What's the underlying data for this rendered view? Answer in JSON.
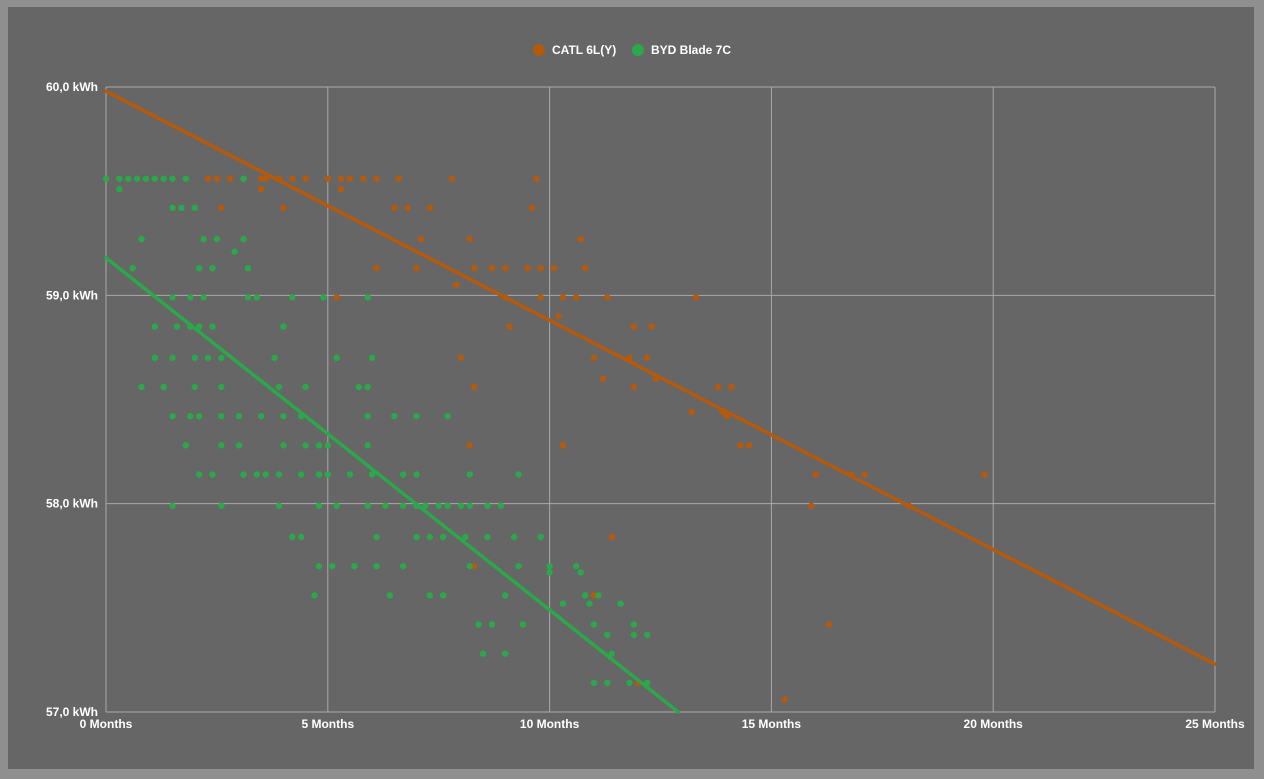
{
  "chart_data": {
    "type": "scatter",
    "title": "",
    "xlabel": "",
    "ylabel": "",
    "xlim": [
      0,
      25
    ],
    "ylim": [
      57.0,
      60.0
    ],
    "grid": true,
    "legend_position": "top-center",
    "x_ticks": [
      "0 Months",
      "5 Months",
      "10 Months",
      "15 Months",
      "20 Months",
      "25 Months"
    ],
    "y_ticks": [
      "60,0 kWh",
      "59,0 kWh",
      "58,0 kWh",
      "57,0 kWh"
    ],
    "series": [
      {
        "name": "CATL 6L(Y)",
        "color": "#b5590b",
        "trendline": {
          "x": [
            0,
            25
          ],
          "y": [
            59.98,
            57.23
          ]
        },
        "points": [
          [
            2.3,
            59.56
          ],
          [
            2.5,
            59.56
          ],
          [
            2.8,
            59.56
          ],
          [
            3.1,
            59.56
          ],
          [
            3.5,
            59.56
          ],
          [
            3.6,
            59.56
          ],
          [
            3.9,
            59.56
          ],
          [
            4.2,
            59.56
          ],
          [
            4.5,
            59.56
          ],
          [
            5.0,
            59.56
          ],
          [
            5.3,
            59.56
          ],
          [
            5.5,
            59.56
          ],
          [
            5.8,
            59.56
          ],
          [
            6.1,
            59.56
          ],
          [
            6.6,
            59.56
          ],
          [
            7.8,
            59.56
          ],
          [
            9.7,
            59.56
          ],
          [
            3.5,
            59.51
          ],
          [
            5.3,
            59.51
          ],
          [
            2.6,
            59.42
          ],
          [
            4.0,
            59.42
          ],
          [
            6.5,
            59.42
          ],
          [
            6.8,
            59.42
          ],
          [
            7.3,
            59.42
          ],
          [
            9.6,
            59.42
          ],
          [
            7.1,
            59.27
          ],
          [
            8.2,
            59.27
          ],
          [
            10.7,
            59.27
          ],
          [
            6.1,
            59.13
          ],
          [
            7.0,
            59.13
          ],
          [
            8.3,
            59.13
          ],
          [
            8.7,
            59.13
          ],
          [
            9.0,
            59.13
          ],
          [
            9.5,
            59.13
          ],
          [
            9.8,
            59.13
          ],
          [
            10.1,
            59.13
          ],
          [
            10.8,
            59.13
          ],
          [
            7.9,
            59.05
          ],
          [
            5.2,
            58.99
          ],
          [
            9.0,
            58.99
          ],
          [
            9.8,
            58.99
          ],
          [
            10.3,
            58.99
          ],
          [
            10.6,
            58.99
          ],
          [
            11.3,
            58.99
          ],
          [
            13.3,
            58.99
          ],
          [
            10.2,
            58.9
          ],
          [
            9.1,
            58.85
          ],
          [
            11.9,
            58.85
          ],
          [
            12.3,
            58.85
          ],
          [
            8.0,
            58.7
          ],
          [
            11.0,
            58.7
          ],
          [
            11.8,
            58.7
          ],
          [
            12.2,
            58.7
          ],
          [
            11.2,
            58.6
          ],
          [
            12.4,
            58.6
          ],
          [
            8.3,
            58.56
          ],
          [
            11.9,
            58.56
          ],
          [
            13.8,
            58.56
          ],
          [
            14.1,
            58.56
          ],
          [
            13.2,
            58.44
          ],
          [
            13.9,
            58.44
          ],
          [
            14.0,
            58.42
          ],
          [
            14.3,
            58.28
          ],
          [
            14.5,
            58.28
          ],
          [
            8.2,
            58.28
          ],
          [
            10.3,
            58.28
          ],
          [
            16.0,
            58.14
          ],
          [
            16.8,
            58.14
          ],
          [
            17.1,
            58.14
          ],
          [
            19.8,
            58.14
          ],
          [
            15.9,
            57.99
          ],
          [
            18.1,
            57.99
          ],
          [
            11.4,
            57.84
          ],
          [
            8.3,
            57.7
          ],
          [
            11.0,
            57.56
          ],
          [
            16.3,
            57.42
          ],
          [
            12.0,
            57.14
          ],
          [
            15.3,
            57.06
          ]
        ]
      },
      {
        "name": "BYD Blade 7C",
        "color": "#2aa84a",
        "trendline": {
          "x": [
            0,
            12.9
          ],
          "y": [
            59.18,
            57.0
          ]
        },
        "points": [
          [
            0.0,
            59.56
          ],
          [
            0.3,
            59.56
          ],
          [
            0.5,
            59.56
          ],
          [
            0.7,
            59.56
          ],
          [
            0.9,
            59.56
          ],
          [
            1.1,
            59.56
          ],
          [
            1.3,
            59.56
          ],
          [
            1.5,
            59.56
          ],
          [
            1.8,
            59.56
          ],
          [
            3.1,
            59.56
          ],
          [
            0.3,
            59.51
          ],
          [
            1.5,
            59.42
          ],
          [
            1.7,
            59.42
          ],
          [
            2.0,
            59.42
          ],
          [
            0.8,
            59.27
          ],
          [
            2.2,
            59.27
          ],
          [
            2.5,
            59.27
          ],
          [
            3.1,
            59.27
          ],
          [
            2.9,
            59.21
          ],
          [
            0.6,
            59.13
          ],
          [
            2.1,
            59.13
          ],
          [
            2.4,
            59.13
          ],
          [
            3.2,
            59.13
          ],
          [
            1.5,
            58.99
          ],
          [
            1.9,
            58.99
          ],
          [
            2.2,
            58.99
          ],
          [
            3.2,
            58.99
          ],
          [
            3.4,
            58.99
          ],
          [
            4.2,
            58.99
          ],
          [
            4.9,
            58.99
          ],
          [
            5.9,
            58.99
          ],
          [
            1.1,
            58.85
          ],
          [
            1.6,
            58.85
          ],
          [
            1.9,
            58.85
          ],
          [
            2.1,
            58.85
          ],
          [
            2.4,
            58.85
          ],
          [
            4.0,
            58.85
          ],
          [
            1.1,
            58.7
          ],
          [
            1.5,
            58.7
          ],
          [
            2.0,
            58.7
          ],
          [
            2.3,
            58.7
          ],
          [
            2.6,
            58.7
          ],
          [
            3.8,
            58.7
          ],
          [
            5.2,
            58.7
          ],
          [
            6.0,
            58.7
          ],
          [
            0.8,
            58.56
          ],
          [
            1.3,
            58.56
          ],
          [
            2.0,
            58.56
          ],
          [
            2.6,
            58.56
          ],
          [
            3.9,
            58.56
          ],
          [
            4.5,
            58.56
          ],
          [
            5.7,
            58.56
          ],
          [
            5.9,
            58.56
          ],
          [
            1.5,
            58.42
          ],
          [
            1.9,
            58.42
          ],
          [
            2.1,
            58.42
          ],
          [
            2.6,
            58.42
          ],
          [
            3.0,
            58.42
          ],
          [
            3.5,
            58.42
          ],
          [
            4.0,
            58.42
          ],
          [
            4.4,
            58.42
          ],
          [
            5.9,
            58.42
          ],
          [
            6.5,
            58.42
          ],
          [
            7.0,
            58.42
          ],
          [
            7.7,
            58.42
          ],
          [
            1.8,
            58.28
          ],
          [
            2.6,
            58.28
          ],
          [
            3.0,
            58.28
          ],
          [
            4.0,
            58.28
          ],
          [
            4.5,
            58.28
          ],
          [
            4.8,
            58.28
          ],
          [
            5.0,
            58.28
          ],
          [
            5.9,
            58.28
          ],
          [
            2.1,
            58.14
          ],
          [
            2.4,
            58.14
          ],
          [
            3.1,
            58.14
          ],
          [
            3.4,
            58.14
          ],
          [
            3.6,
            58.14
          ],
          [
            3.9,
            58.14
          ],
          [
            4.4,
            58.14
          ],
          [
            4.8,
            58.14
          ],
          [
            5.0,
            58.14
          ],
          [
            5.5,
            58.14
          ],
          [
            6.0,
            58.14
          ],
          [
            6.7,
            58.14
          ],
          [
            7.0,
            58.14
          ],
          [
            8.2,
            58.14
          ],
          [
            9.3,
            58.14
          ],
          [
            1.5,
            57.99
          ],
          [
            2.6,
            57.99
          ],
          [
            3.9,
            57.99
          ],
          [
            4.8,
            57.99
          ],
          [
            5.2,
            57.99
          ],
          [
            5.9,
            57.99
          ],
          [
            6.3,
            57.99
          ],
          [
            6.7,
            57.99
          ],
          [
            7.0,
            57.99
          ],
          [
            7.2,
            57.99
          ],
          [
            7.5,
            57.99
          ],
          [
            7.7,
            57.99
          ],
          [
            8.0,
            57.99
          ],
          [
            8.2,
            57.99
          ],
          [
            8.6,
            57.99
          ],
          [
            8.9,
            57.99
          ],
          [
            4.2,
            57.84
          ],
          [
            4.4,
            57.84
          ],
          [
            6.1,
            57.84
          ],
          [
            7.0,
            57.84
          ],
          [
            7.3,
            57.84
          ],
          [
            7.6,
            57.84
          ],
          [
            8.1,
            57.84
          ],
          [
            8.6,
            57.84
          ],
          [
            9.2,
            57.84
          ],
          [
            9.8,
            57.84
          ],
          [
            4.8,
            57.7
          ],
          [
            5.1,
            57.7
          ],
          [
            5.6,
            57.7
          ],
          [
            6.1,
            57.7
          ],
          [
            6.7,
            57.7
          ],
          [
            8.2,
            57.7
          ],
          [
            9.3,
            57.7
          ],
          [
            10.0,
            57.7
          ],
          [
            10.6,
            57.7
          ],
          [
            10.0,
            57.67
          ],
          [
            10.7,
            57.67
          ],
          [
            4.7,
            57.56
          ],
          [
            6.4,
            57.56
          ],
          [
            7.3,
            57.56
          ],
          [
            7.6,
            57.56
          ],
          [
            9.0,
            57.56
          ],
          [
            10.8,
            57.56
          ],
          [
            11.1,
            57.56
          ],
          [
            10.3,
            57.52
          ],
          [
            10.9,
            57.52
          ],
          [
            11.6,
            57.52
          ],
          [
            8.4,
            57.42
          ],
          [
            8.7,
            57.42
          ],
          [
            9.4,
            57.42
          ],
          [
            11.0,
            57.42
          ],
          [
            11.9,
            57.42
          ],
          [
            11.3,
            57.37
          ],
          [
            11.9,
            57.37
          ],
          [
            12.2,
            57.37
          ],
          [
            8.5,
            57.28
          ],
          [
            9.0,
            57.28
          ],
          [
            11.4,
            57.28
          ],
          [
            11.0,
            57.14
          ],
          [
            11.3,
            57.14
          ],
          [
            11.8,
            57.14
          ],
          [
            12.2,
            57.14
          ]
        ]
      }
    ]
  }
}
